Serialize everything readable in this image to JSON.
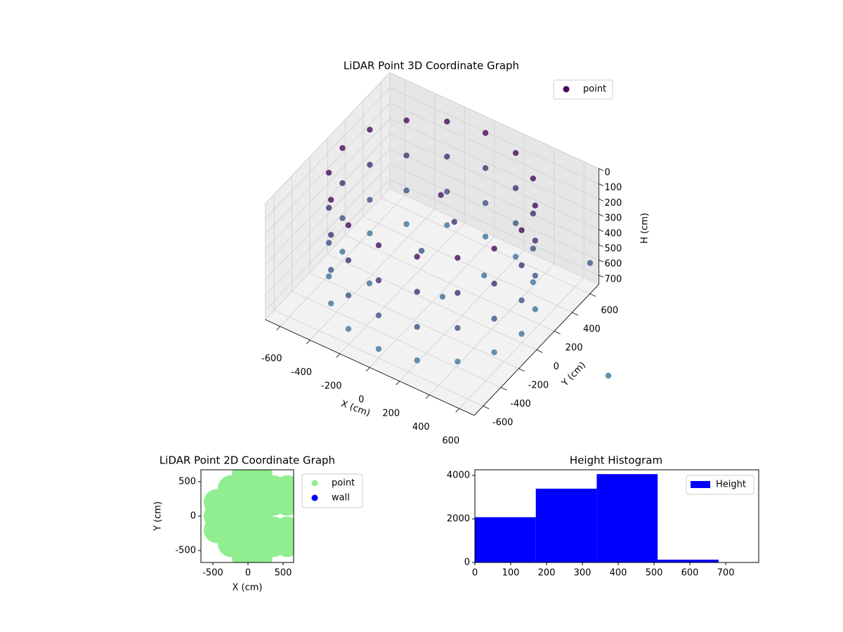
{
  "chart_data": [
    {
      "type": "scatter3d",
      "title": "LiDAR Point 3D Coordinate Graph",
      "xlabel": "X (cm)",
      "ylabel": "Y (cm)",
      "zlabel": "H (cm)",
      "xlim": [
        -700,
        700
      ],
      "ylim": [
        -700,
        700
      ],
      "zlim": [
        0,
        760
      ],
      "z_inverted": true,
      "xticks": [
        -600,
        -400,
        -200,
        0,
        200,
        400,
        600
      ],
      "yticks": [
        -600,
        -400,
        -200,
        0,
        200,
        400,
        600
      ],
      "zticks": [
        0,
        100,
        200,
        300,
        400,
        500,
        600,
        700
      ],
      "colormap": [
        "#46085c",
        "#3b7f9f"
      ],
      "grid": true,
      "legend": "upper right",
      "series": [
        {
          "name": "point",
          "x": [
            600,
            554,
            424,
            230,
            0,
            -230,
            -424,
            -554,
            -600,
            -554,
            -424,
            -230,
            0,
            230,
            424,
            554,
            600,
            554,
            424,
            230,
            0,
            -230,
            -424,
            -554,
            -600,
            -554,
            -424,
            -230,
            0,
            230,
            424,
            554,
            600,
            554,
            424,
            230,
            0,
            -230,
            -424,
            -554,
            -600,
            -554,
            -424,
            -230,
            0,
            230,
            424,
            554,
            600,
            554,
            424,
            230,
            0,
            -230,
            -424,
            -554,
            -600,
            -554,
            -424,
            -230,
            0,
            230,
            424,
            554,
            0,
            60,
            -100,
            100,
            -300,
            200,
            740,
            1190
          ],
          "y": [
            0,
            230,
            424,
            554,
            600,
            554,
            424,
            230,
            0,
            -230,
            -424,
            -554,
            -600,
            -554,
            -424,
            -230,
            0,
            230,
            424,
            554,
            600,
            554,
            424,
            230,
            0,
            -230,
            -424,
            -554,
            -600,
            -554,
            -424,
            -230,
            0,
            230,
            424,
            554,
            600,
            554,
            424,
            230,
            0,
            -230,
            -424,
            -554,
            -600,
            -554,
            -424,
            -230,
            0,
            230,
            424,
            554,
            600,
            554,
            424,
            230,
            0,
            -230,
            -424,
            -554,
            -600,
            -554,
            -424,
            -230,
            100,
            150,
            50,
            -50,
            -200,
            250,
            534,
            -15
          ],
          "z": [
            20,
            20,
            20,
            20,
            20,
            20,
            20,
            20,
            20,
            20,
            20,
            20,
            20,
            20,
            20,
            20,
            250,
            250,
            250,
            250,
            250,
            250,
            250,
            250,
            250,
            250,
            250,
            250,
            250,
            250,
            250,
            250,
            480,
            480,
            480,
            480,
            480,
            480,
            480,
            480,
            480,
            480,
            480,
            480,
            480,
            480,
            480,
            480,
            700,
            700,
            700,
            700,
            700,
            700,
            700,
            700,
            700,
            700,
            700,
            700,
            700,
            700,
            700,
            700,
            120,
            300,
            500,
            650,
            650,
            650,
            500,
            700
          ]
        }
      ]
    },
    {
      "type": "scatter",
      "title": "LiDAR Point 2D Coordinate Graph",
      "xlabel": "X (cm)",
      "ylabel": "Y (cm)",
      "xlim": [
        -670,
        650
      ],
      "ylim": [
        -673,
        673
      ],
      "xticks": [
        -500,
        0,
        500
      ],
      "yticks": [
        -500,
        0,
        500
      ],
      "legend": "outside right",
      "series": [
        {
          "name": "point",
          "color": "#90ee90",
          "x": [
            -440,
            -440,
            -440,
            -240,
            -240,
            -240,
            -240,
            -240,
            -40,
            -40,
            -40,
            -40,
            -40,
            -40,
            -40,
            160,
            160,
            160,
            160,
            160,
            160,
            160,
            360,
            360,
            360,
            360,
            560,
            560,
            560,
            560
          ],
          "y": [
            -200,
            0,
            200,
            -400,
            -200,
            0,
            200,
            400,
            -600,
            -400,
            -200,
            0,
            200,
            400,
            600,
            -600,
            -400,
            -200,
            0,
            200,
            400,
            600,
            -400,
            -200,
            200,
            400,
            -400,
            -200,
            200,
            400
          ]
        },
        {
          "name": "wall",
          "color": "#0000ff",
          "x": [],
          "y": []
        }
      ]
    },
    {
      "type": "histogram",
      "title": "Height Histogram",
      "name": "Height",
      "color": "#0000ff",
      "bins": [
        0,
        170,
        340,
        510,
        680
      ],
      "counts": [
        2080,
        3390,
        4060,
        130
      ],
      "xlim": [
        0,
        792
      ],
      "ylim": [
        0,
        4258
      ],
      "xticks": [
        0,
        100,
        200,
        300,
        400,
        500,
        600,
        700
      ],
      "yticks": [
        0,
        2000,
        4000
      ],
      "legend": "upper right"
    }
  ]
}
